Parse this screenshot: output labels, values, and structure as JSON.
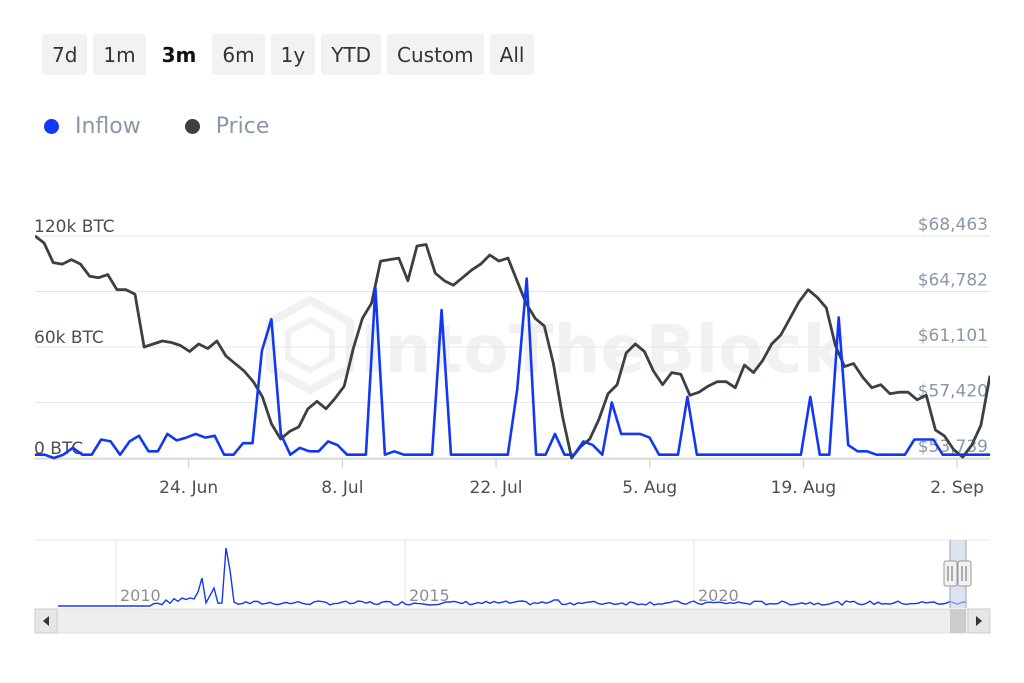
{
  "range_selector": {
    "buttons": [
      "7d",
      "1m",
      "3m",
      "6m",
      "1y",
      "YTD",
      "Custom",
      "All"
    ],
    "active": "3m"
  },
  "legend": [
    {
      "name": "Inflow",
      "color": "#1238f5"
    },
    {
      "name": "Price",
      "color": "#3b4045"
    }
  ],
  "watermark": "IntoTheBlock",
  "chart_data": {
    "type": "line",
    "x_tick_labels": [
      "24. Jun",
      "8. Jul",
      "22. Jul",
      "5. Aug",
      "19. Aug",
      "2. Sep"
    ],
    "x_tick_dates": [
      "2024-06-24",
      "2024-07-08",
      "2024-07-22",
      "2024-08-05",
      "2024-08-19",
      "2024-09-02"
    ],
    "x_range": [
      "2024-06-10",
      "2024-09-05"
    ],
    "y_left": {
      "tick_labels": [
        "0 BTC",
        "60k BTC",
        "120k BTC"
      ],
      "ticks": [
        0,
        60000,
        120000
      ],
      "range": [
        0,
        120000
      ]
    },
    "y_right": {
      "tick_labels": [
        "$53,739",
        "$57,420",
        "$61,101",
        "$64,782",
        "$68,463"
      ],
      "ticks": [
        53739,
        57420,
        61101,
        64782,
        68463
      ],
      "range": [
        53739,
        68463
      ]
    },
    "grid": true,
    "series": [
      {
        "name": "Inflow",
        "axis": "left",
        "color": "#1238f5",
        "values": [
          1800,
          1800,
          0,
          1800,
          5500,
          1800,
          1800,
          10000,
          9000,
          1800,
          9000,
          12000,
          3600,
          3600,
          13000,
          9500,
          11000,
          13000,
          11000,
          12000,
          1800,
          1800,
          8000,
          8000,
          58000,
          75000,
          13000,
          1800,
          5500,
          3600,
          3600,
          9000,
          7000,
          1800,
          1800,
          1800,
          92000,
          1800,
          3600,
          1800,
          1800,
          1800,
          1800,
          80000,
          1800,
          1800,
          1800,
          1800,
          1800,
          1800,
          1800,
          37000,
          97000,
          1800,
          1800,
          13000,
          1800,
          1800,
          9000,
          7000,
          1800,
          30000,
          13000,
          13000,
          13000,
          11000,
          1800,
          1800,
          1800,
          33000,
          1800,
          1800,
          1800,
          1800,
          1800,
          1800,
          1800,
          1800,
          1800,
          1800,
          1800,
          1800,
          33000,
          1800,
          1800,
          76000,
          7000,
          3600,
          3600,
          1800,
          1800,
          1800,
          1800,
          10000,
          10000,
          10000,
          1800,
          1800,
          1800,
          1800,
          1800,
          1800
        ]
      },
      {
        "name": "Price",
        "axis": "right",
        "color": "#3b4045",
        "values": [
          68463,
          68000,
          66700,
          66600,
          66900,
          66600,
          65800,
          65700,
          65900,
          64900,
          64900,
          64600,
          61100,
          61300,
          61500,
          61400,
          61200,
          60800,
          61300,
          61000,
          61500,
          60500,
          60000,
          59500,
          58800,
          57800,
          56000,
          55000,
          55500,
          55800,
          57000,
          57500,
          57000,
          57700,
          58500,
          61000,
          63000,
          64000,
          66800,
          66900,
          67000,
          65500,
          67800,
          67900,
          66000,
          65500,
          65200,
          65700,
          66200,
          66600,
          67200,
          66800,
          67000,
          65500,
          64000,
          63000,
          62500,
          60000,
          56500,
          53739,
          54500,
          55000,
          56300,
          58000,
          58600,
          60700,
          61300,
          60800,
          59500,
          58600,
          59400,
          59300,
          57900,
          58100,
          58500,
          58800,
          58800,
          58400,
          59900,
          59400,
          60200,
          61300,
          61900,
          63000,
          64100,
          64900,
          64400,
          63700,
          61200,
          59800,
          60000,
          59100,
          58400,
          58600,
          58000,
          58100,
          58100,
          57600,
          57900,
          55600,
          55200,
          54300,
          53800,
          54600,
          55900,
          59200
        ]
      }
    ],
    "navigator": {
      "x_tick_labels": [
        "2010",
        "2015",
        "2020"
      ],
      "series_name": "Inflow"
    }
  }
}
